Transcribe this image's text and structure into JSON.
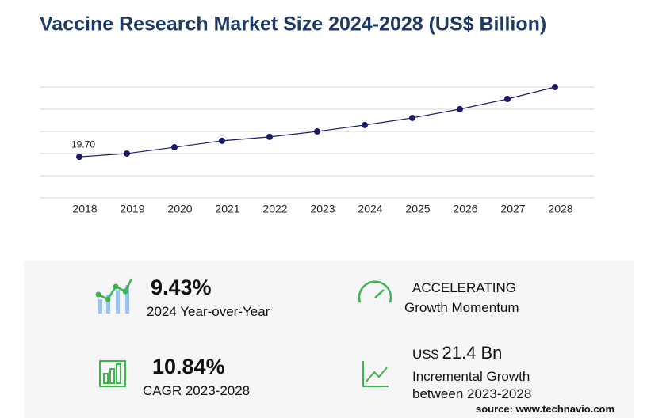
{
  "chart_data": {
    "type": "line",
    "title": "Vaccine Research Market Size 2024-2028 (US$ Billion)",
    "categories": [
      "2018",
      "2019",
      "2020",
      "2021",
      "2022",
      "2023",
      "2024",
      "2025",
      "2026",
      "2027",
      "2028"
    ],
    "values": [
      19.7,
      21.3,
      24.3,
      27.4,
      29.3,
      31.9,
      35.0,
      38.4,
      42.6,
      47.5,
      53.2
    ],
    "value_labels": [
      "19.70",
      null,
      null,
      null,
      null,
      null,
      null,
      null,
      null,
      null,
      null
    ],
    "color": "#1c1c6b",
    "ylim": [
      0,
      53.2
    ],
    "grid": true
  },
  "stats": [
    {
      "value": "9.43%",
      "label": "2024 Year-over-Year"
    },
    {
      "value": "ACCELERATING",
      "label": "Growth Momentum"
    },
    {
      "value": "10.84%",
      "label": "CAGR 2023-2028"
    },
    {
      "prefix": "US$",
      "value": "21.4 Bn",
      "label": "Incremental Growth",
      "label2": "between 2023-2028"
    }
  ],
  "source": "source: www.technavio.com"
}
